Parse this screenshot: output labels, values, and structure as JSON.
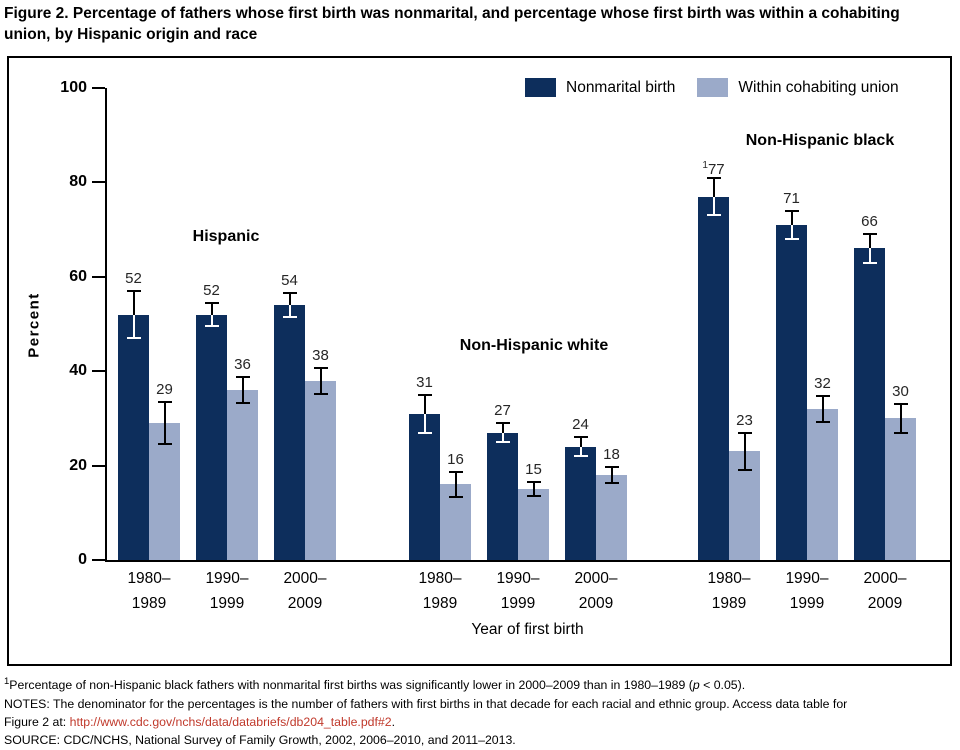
{
  "title": {
    "line1": "Figure 2. Percentage of fathers whose first birth was nonmarital, and percentage whose first birth was within a cohabiting",
    "line2": "union, by Hispanic origin and race"
  },
  "chart_data": {
    "type": "bar",
    "title": "Figure 2. Percentage of fathers whose first birth was nonmarital, and percentage whose first birth was within a cohabiting union, by Hispanic origin and race",
    "xlabel": "Year of first birth",
    "ylabel": "Percent",
    "ylim": [
      0,
      100
    ],
    "yticks": [
      0,
      20,
      40,
      60,
      80,
      100
    ],
    "grid": false,
    "legend_position": "top-right",
    "legend": [
      {
        "key": "nonmarital",
        "label": "Nonmarital birth",
        "color": "#0d2e5c"
      },
      {
        "key": "cohabiting",
        "label": "Within cohabiting union",
        "color": "#9baac9"
      }
    ],
    "groups": [
      {
        "label": "Hispanic",
        "pairs": [
          {
            "category_lines": [
              "1980–",
              "1989"
            ],
            "nonmarital": {
              "value": 52,
              "err": 5
            },
            "cohabiting": {
              "value": 29,
              "err": 4.5
            }
          },
          {
            "category_lines": [
              "1990–",
              "1999"
            ],
            "nonmarital": {
              "value": 52,
              "err": 2.5
            },
            "cohabiting": {
              "value": 36,
              "err": 2.75
            }
          },
          {
            "category_lines": [
              "2000–",
              "2009"
            ],
            "nonmarital": {
              "value": 54,
              "err": 2.5
            },
            "cohabiting": {
              "value": 38,
              "err": 2.75
            }
          }
        ]
      },
      {
        "label": "Non-Hispanic white",
        "pairs": [
          {
            "category_lines": [
              "1980–",
              "1989"
            ],
            "nonmarital": {
              "value": 31,
              "err": 4
            },
            "cohabiting": {
              "value": 16,
              "err": 2.75
            }
          },
          {
            "category_lines": [
              "1990–",
              "1999"
            ],
            "nonmarital": {
              "value": 27,
              "err": 2
            },
            "cohabiting": {
              "value": 15,
              "err": 1.5
            }
          },
          {
            "category_lines": [
              "2000–",
              "2009"
            ],
            "nonmarital": {
              "value": 24,
              "err": 2
            },
            "cohabiting": {
              "value": 18,
              "err": 1.75
            }
          }
        ]
      },
      {
        "label": "Non-Hispanic black",
        "pairs": [
          {
            "category_lines": [
              "1980–",
              "1989"
            ],
            "nonmarital": {
              "value": 77,
              "err": 4,
              "sup": "1"
            },
            "cohabiting": {
              "value": 23,
              "err": 4
            }
          },
          {
            "category_lines": [
              "1990–",
              "1999"
            ],
            "nonmarital": {
              "value": 71,
              "err": 3
            },
            "cohabiting": {
              "value": 32,
              "err": 2.75
            }
          },
          {
            "category_lines": [
              "2000–",
              "2009"
            ],
            "nonmarital": {
              "value": 66,
              "err": 3
            },
            "cohabiting": {
              "value": 30,
              "err": 3
            }
          }
        ]
      }
    ]
  },
  "footnotes": {
    "note1": {
      "sup": "1",
      "text": "Percentage of non-Hispanic black fathers with nonmarital first births was significantly lower in 2000–2009 than in 1980–1989 (",
      "p": "p",
      "tail": " < 0.05)."
    },
    "notes_line1": "NOTES: The denominator for the percentages is the number of fathers with first births in that decade for each racial and ethnic group. Access data table for",
    "notes_line2_prefix": "Figure 2 at: ",
    "link_text": "http://www.cdc.gov/nchs/data/databriefs/db204_table.pdf#2",
    "link_suffix": ".",
    "link_color": "#c0392b",
    "source": "SOURCE: CDC/NCHS, National Survey of Family Growth, 2002, 2006–2010, and 2011–2013."
  }
}
